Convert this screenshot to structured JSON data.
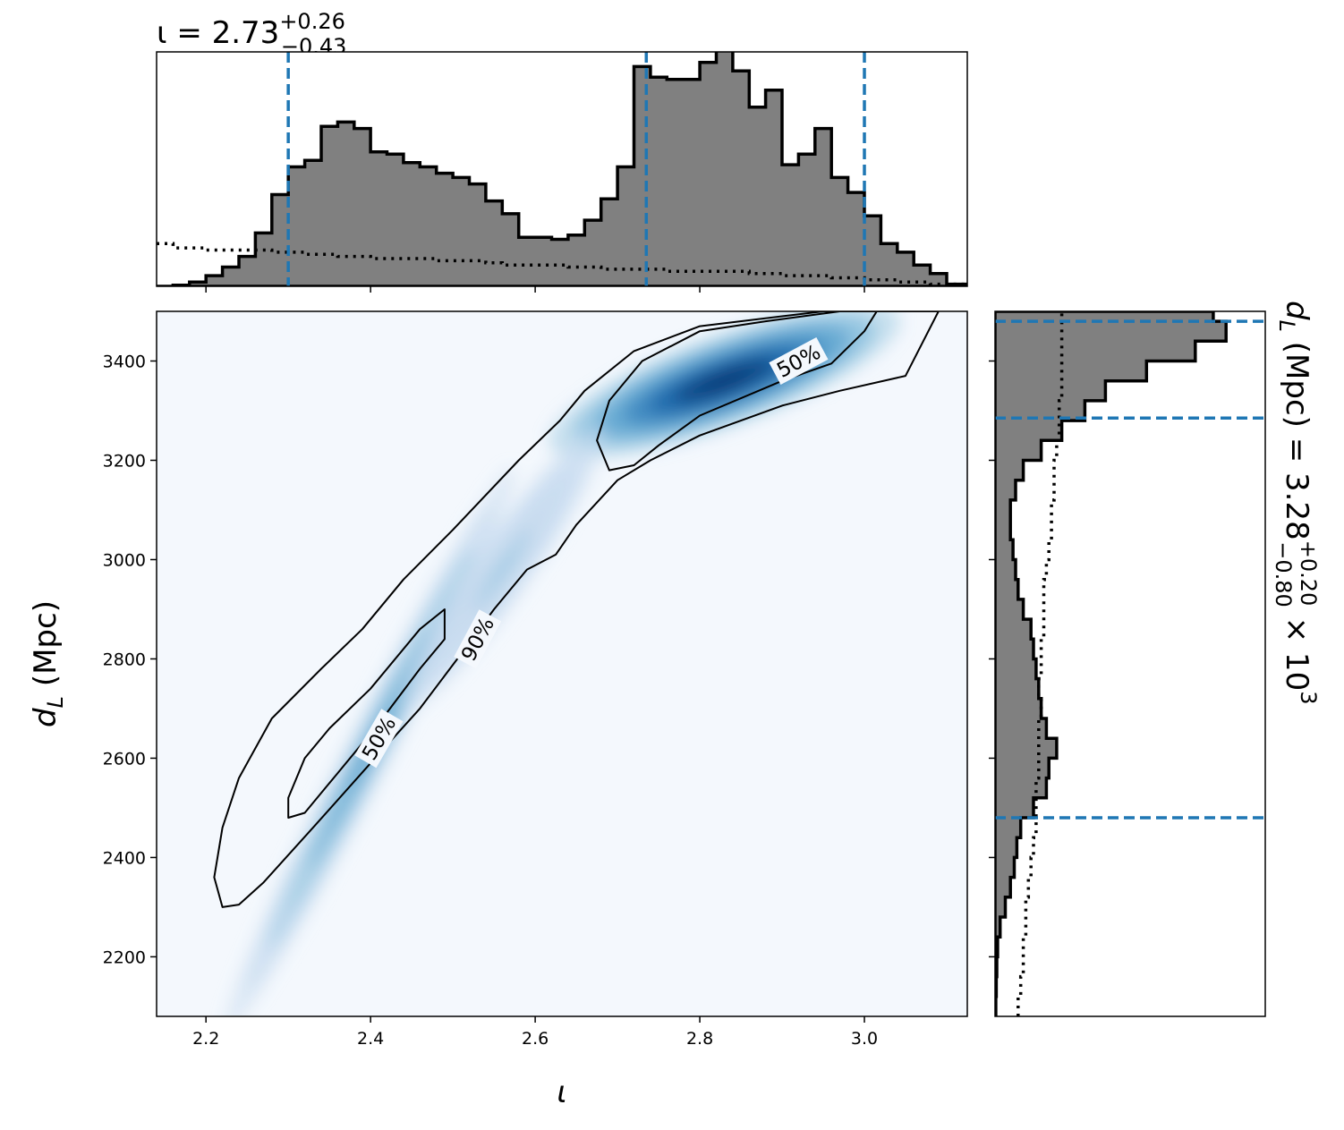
{
  "chart_data": {
    "type": "corner-2d-posterior",
    "title": {
      "prefix": "ι = 2.73",
      "sup": "+0.26",
      "sub": "−0.43"
    },
    "right_label": {
      "prefix": "d",
      "prefix_sub": "L",
      "main": " (Mpc) = 3.28",
      "sup": "+0.20",
      "sub": "−0.80",
      "suffix": " × 10",
      "suffix_sup": "3"
    },
    "xlabel": "ι",
    "ylabel": {
      "main": "d",
      "sub": "L",
      "rest": " (Mpc)"
    },
    "xlim": [
      2.14,
      3.125
    ],
    "ylim": [
      2080,
      3500
    ],
    "x_ticks": [
      2.2,
      2.4,
      2.6,
      2.8,
      3.0
    ],
    "x_tick_labels": [
      "2.2",
      "2.4",
      "2.6",
      "2.8",
      "3.0"
    ],
    "y_ticks": [
      2200,
      2400,
      2600,
      2800,
      3000,
      3200,
      3400
    ],
    "y_tick_labels": [
      "2200",
      "2400",
      "2600",
      "2800",
      "3000",
      "3200",
      "3400"
    ],
    "colors": {
      "hist_fill": "#808080",
      "hist_edge": "#000000",
      "quantile_line": "#1f77b4",
      "density_cmap": "Blues"
    },
    "iota_hist": {
      "bin_edges": [
        2.14,
        2.16,
        2.18,
        2.2,
        2.22,
        2.24,
        2.26,
        2.28,
        2.3,
        2.32,
        2.34,
        2.36,
        2.38,
        2.4,
        2.42,
        2.44,
        2.46,
        2.48,
        2.5,
        2.52,
        2.54,
        2.56,
        2.58,
        2.6,
        2.62,
        2.64,
        2.66,
        2.68,
        2.7,
        2.72,
        2.74,
        2.76,
        2.78,
        2.8,
        2.82,
        2.84,
        2.86,
        2.88,
        2.9,
        2.92,
        2.94,
        2.96,
        2.98,
        3.0,
        3.02,
        3.04,
        3.06,
        3.08,
        3.1,
        3.125
      ],
      "heights": [
        0,
        0.005,
        0.02,
        0.05,
        0.09,
        0.14,
        0.25,
        0.43,
        0.56,
        0.59,
        0.75,
        0.77,
        0.74,
        0.63,
        0.62,
        0.58,
        0.56,
        0.53,
        0.51,
        0.48,
        0.4,
        0.34,
        0.23,
        0.23,
        0.22,
        0.24,
        0.31,
        0.41,
        0.56,
        1.03,
        0.98,
        0.97,
        0.97,
        1.05,
        1.11,
        1.01,
        0.84,
        0.92,
        0.57,
        0.62,
        0.74,
        0.51,
        0.44,
        0.33,
        0.2,
        0.16,
        0.1,
        0.06,
        0.01
      ],
      "prior": [
        0.2,
        0.18,
        0.18,
        0.17,
        0.17,
        0.17,
        0.17,
        0.16,
        0.16,
        0.15,
        0.15,
        0.14,
        0.14,
        0.13,
        0.13,
        0.13,
        0.13,
        0.12,
        0.12,
        0.12,
        0.11,
        0.1,
        0.1,
        0.1,
        0.1,
        0.09,
        0.09,
        0.08,
        0.08,
        0.08,
        0.08,
        0.07,
        0.07,
        0.07,
        0.07,
        0.07,
        0.06,
        0.06,
        0.05,
        0.05,
        0.05,
        0.04,
        0.04,
        0.03,
        0.03,
        0.02,
        0.02,
        0.01,
        0.01
      ],
      "quantiles": [
        2.3,
        2.735,
        3.0
      ]
    },
    "dL_hist": {
      "bin_edges": [
        2080,
        2120,
        2160,
        2200,
        2240,
        2280,
        2320,
        2360,
        2400,
        2440,
        2480,
        2520,
        2560,
        2600,
        2640,
        2680,
        2720,
        2760,
        2800,
        2840,
        2880,
        2920,
        2960,
        3000,
        3040,
        3080,
        3120,
        3160,
        3200,
        3240,
        3280,
        3320,
        3360,
        3400,
        3440,
        3480,
        3500
      ],
      "widths": [
        0.003,
        0.005,
        0.007,
        0.01,
        0.02,
        0.04,
        0.06,
        0.075,
        0.085,
        0.1,
        0.15,
        0.2,
        0.21,
        0.24,
        0.2,
        0.18,
        0.17,
        0.16,
        0.15,
        0.14,
        0.11,
        0.09,
        0.08,
        0.07,
        0.06,
        0.06,
        0.08,
        0.11,
        0.18,
        0.26,
        0.35,
        0.43,
        0.59,
        0.78,
        0.9,
        0.85
      ],
      "prior": [
        0.09,
        0.1,
        0.11,
        0.11,
        0.12,
        0.12,
        0.13,
        0.14,
        0.15,
        0.16,
        0.16,
        0.16,
        0.17,
        0.17,
        0.17,
        0.18,
        0.17,
        0.18,
        0.18,
        0.19,
        0.19,
        0.19,
        0.2,
        0.21,
        0.22,
        0.22,
        0.23,
        0.23,
        0.24,
        0.25,
        0.25,
        0.26,
        0.26,
        0.26,
        0.26,
        0.26
      ],
      "quantiles": [
        2480,
        3285,
        3480
      ]
    },
    "density_modes": [
      {
        "x": 2.4,
        "y": 2620,
        "major": 220,
        "minor": 16,
        "slope_deg": 63,
        "weight": 0.55
      },
      {
        "x": 2.83,
        "y": 3360,
        "major": 130,
        "minor": 32,
        "slope_deg": 20,
        "weight": 1.0
      },
      {
        "x": 2.56,
        "y": 2980,
        "major": 120,
        "minor": 20,
        "slope_deg": 55,
        "weight": 0.22
      }
    ],
    "contours": [
      {
        "level": "90%",
        "label": "90%",
        "points": [
          [
            2.22,
            2300
          ],
          [
            2.24,
            2305
          ],
          [
            2.27,
            2350
          ],
          [
            2.33,
            2460
          ],
          [
            2.4,
            2590
          ],
          [
            2.46,
            2700
          ],
          [
            2.51,
            2810
          ],
          [
            2.55,
            2900
          ],
          [
            2.59,
            2980
          ],
          [
            2.625,
            3010
          ],
          [
            2.65,
            3070
          ],
          [
            2.7,
            3160
          ],
          [
            2.74,
            3200
          ],
          [
            2.8,
            3250
          ],
          [
            2.9,
            3310
          ],
          [
            2.97,
            3340
          ],
          [
            3.05,
            3370
          ],
          [
            3.09,
            3500
          ],
          [
            3.05,
            3500
          ],
          [
            2.95,
            3500
          ],
          [
            2.8,
            3470
          ],
          [
            2.72,
            3420
          ],
          [
            2.66,
            3340
          ],
          [
            2.63,
            3280
          ],
          [
            2.58,
            3200
          ],
          [
            2.5,
            3060
          ],
          [
            2.44,
            2960
          ],
          [
            2.39,
            2860
          ],
          [
            2.34,
            2780
          ],
          [
            2.28,
            2680
          ],
          [
            2.24,
            2560
          ],
          [
            2.22,
            2460
          ],
          [
            2.21,
            2360
          ],
          [
            2.22,
            2300
          ]
        ]
      },
      {
        "level": "50%",
        "label": "50%",
        "points": [
          [
            2.3,
            2480
          ],
          [
            2.32,
            2490
          ],
          [
            2.36,
            2570
          ],
          [
            2.41,
            2670
          ],
          [
            2.46,
            2780
          ],
          [
            2.49,
            2840
          ],
          [
            2.49,
            2900
          ],
          [
            2.46,
            2860
          ],
          [
            2.4,
            2740
          ],
          [
            2.35,
            2660
          ],
          [
            2.32,
            2600
          ],
          [
            2.3,
            2520
          ],
          [
            2.3,
            2480
          ]
        ]
      },
      {
        "level": "50%",
        "label": "50%",
        "points": [
          [
            2.69,
            3180
          ],
          [
            2.72,
            3190
          ],
          [
            2.75,
            3230
          ],
          [
            2.8,
            3290
          ],
          [
            2.9,
            3360
          ],
          [
            2.96,
            3395
          ],
          [
            3.0,
            3460
          ],
          [
            3.015,
            3500
          ],
          [
            2.97,
            3500
          ],
          [
            2.88,
            3480
          ],
          [
            2.8,
            3460
          ],
          [
            2.73,
            3400
          ],
          [
            2.69,
            3320
          ],
          [
            2.675,
            3240
          ],
          [
            2.69,
            3180
          ]
        ]
      }
    ],
    "contour_labels": [
      {
        "text": "90%",
        "x": 2.53,
        "y": 2840,
        "angle_deg": -62
      },
      {
        "text": "50%",
        "x": 2.41,
        "y": 2640,
        "angle_deg": -60
      },
      {
        "text": "50%",
        "x": 2.92,
        "y": 3400,
        "angle_deg": -28
      }
    ]
  }
}
